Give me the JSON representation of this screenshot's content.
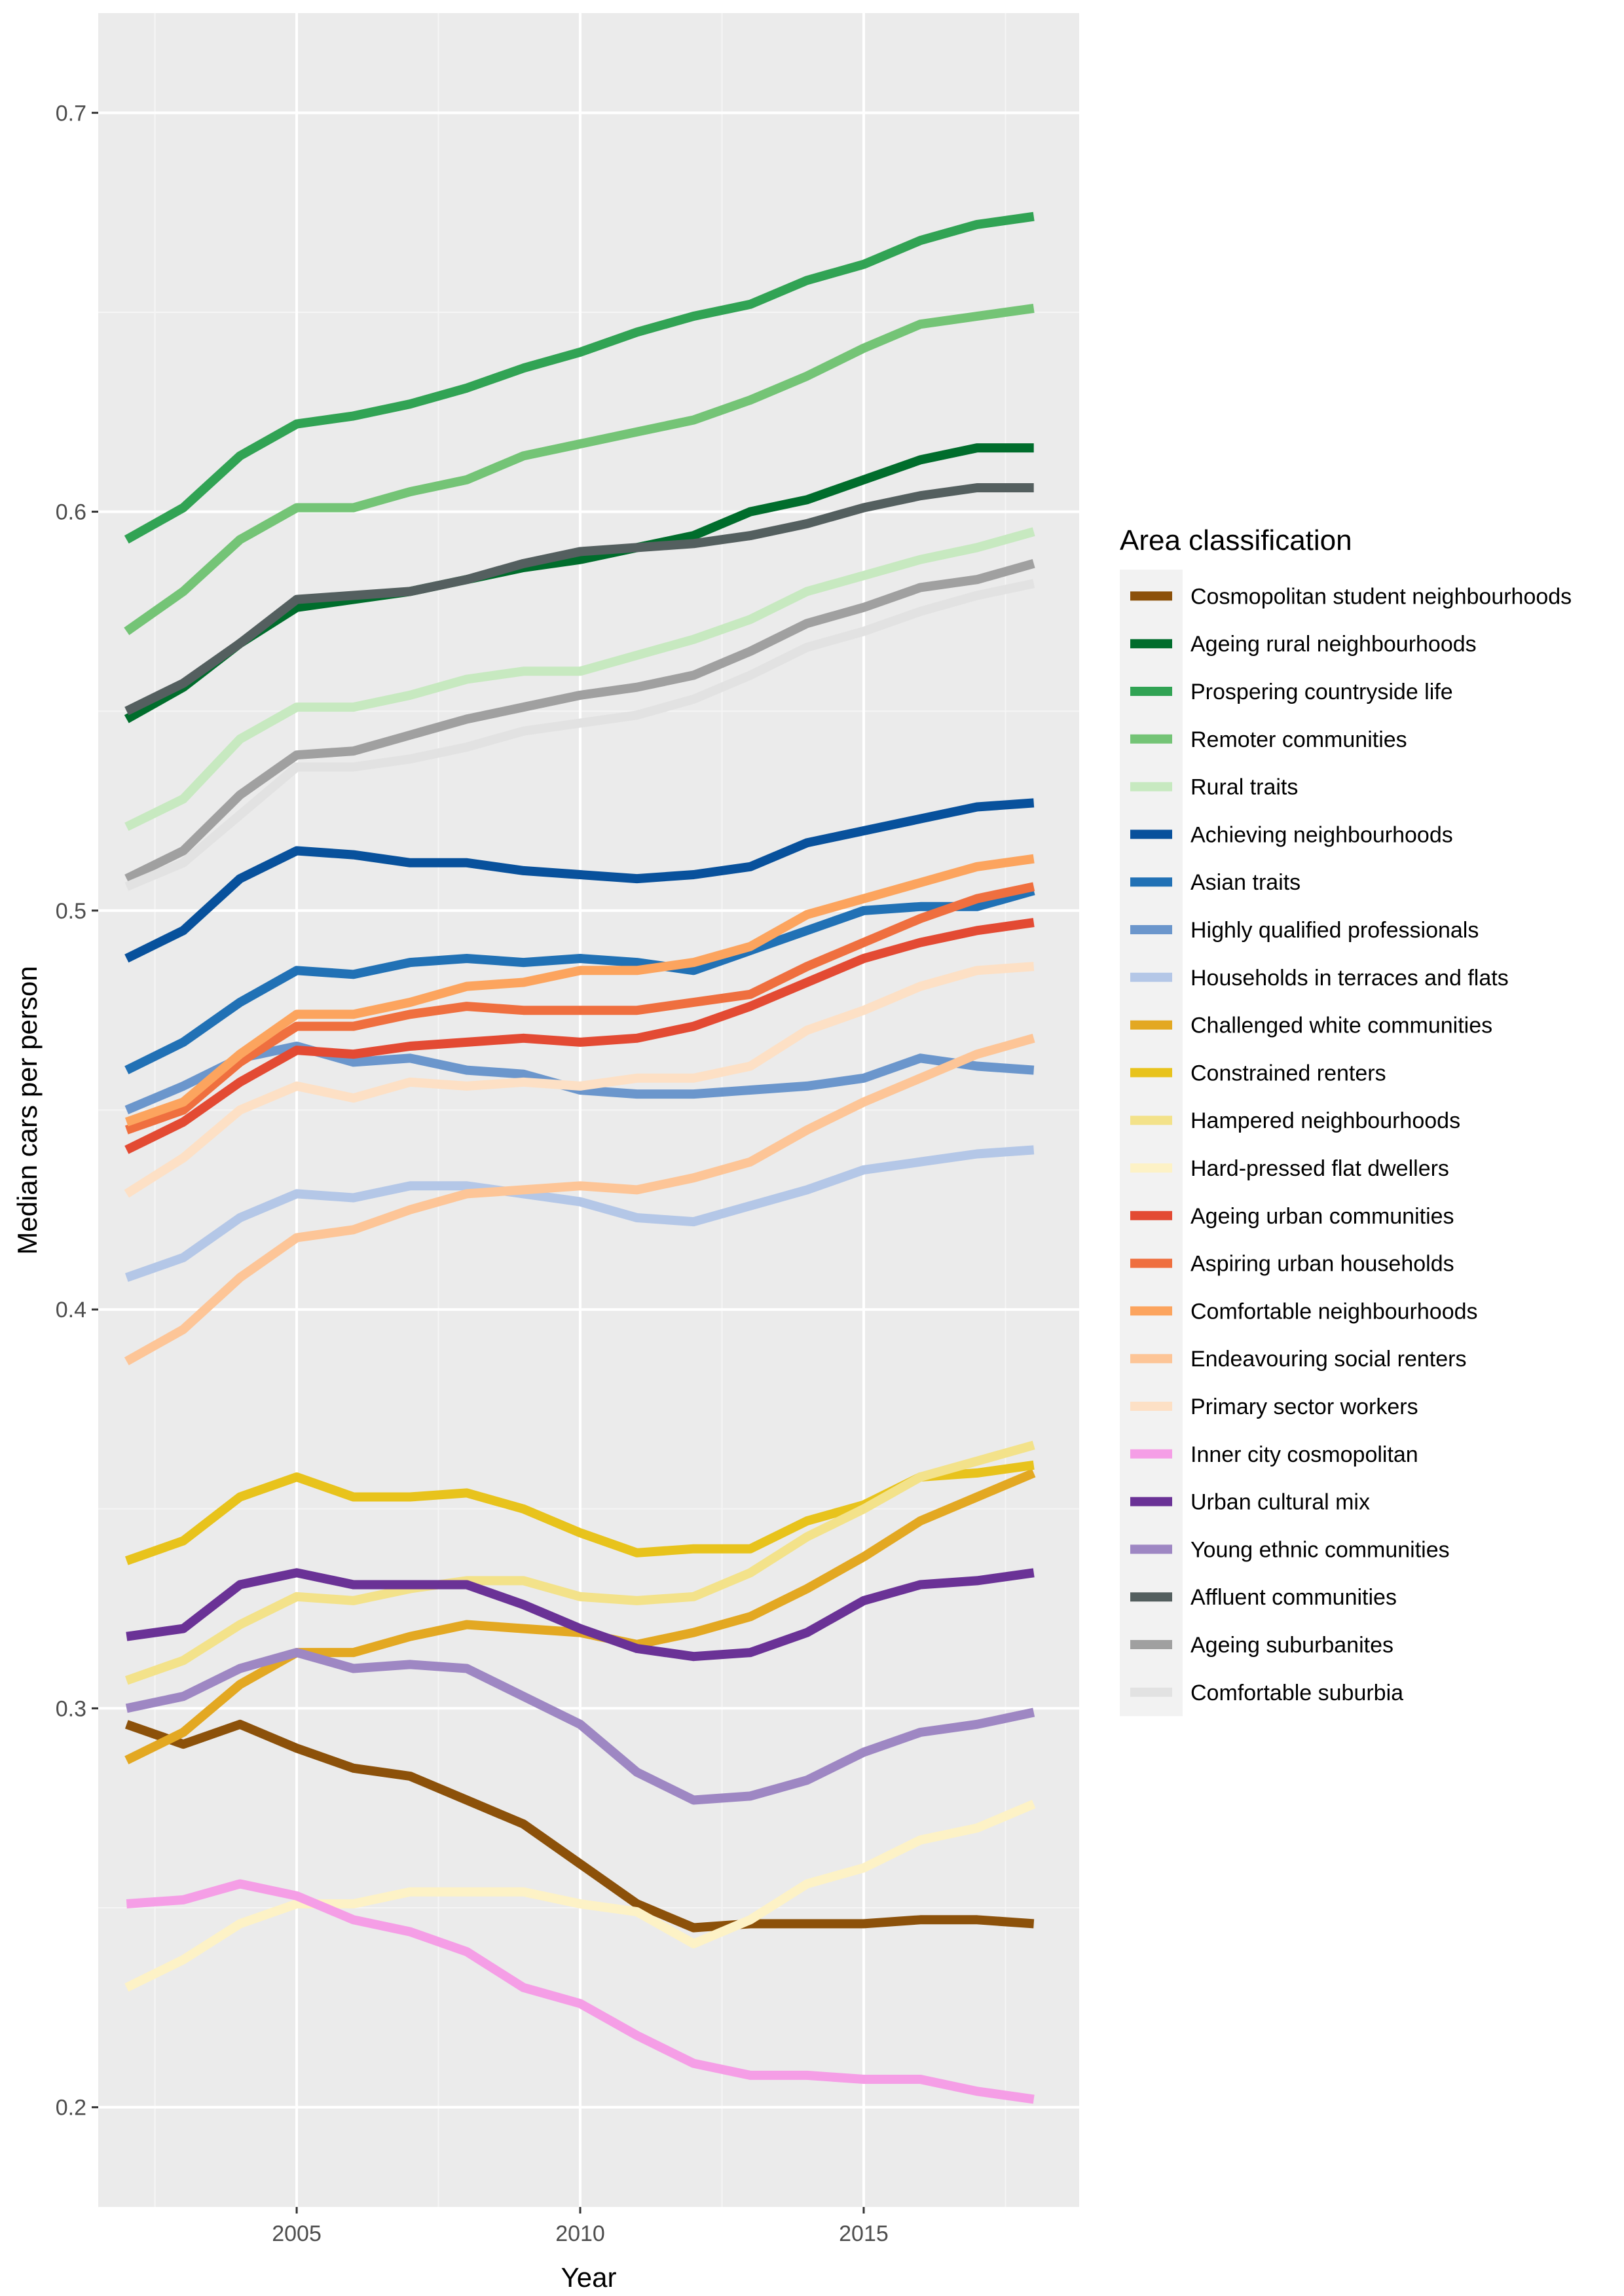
{
  "chart_data": {
    "type": "line",
    "title": "",
    "xlabel": "Year",
    "ylabel": "Median cars per person",
    "xlim": [
      2001.5,
      2018.8
    ],
    "ylim": [
      0.175,
      0.725
    ],
    "x_ticks": [
      2005,
      2010,
      2015
    ],
    "x_tick_labels": [
      "2005",
      "2010",
      "2015"
    ],
    "y_ticks": [
      0.2,
      0.3,
      0.4,
      0.5,
      0.6,
      0.7
    ],
    "y_tick_labels": [
      "0.2",
      "0.3",
      "0.4",
      "0.5",
      "0.6",
      "0.7"
    ],
    "grid": true,
    "legend": {
      "title": "Area classification",
      "position": "right"
    },
    "x": [
      2002,
      2003,
      2004,
      2005,
      2006,
      2007,
      2008,
      2009,
      2010,
      2011,
      2012,
      2013,
      2014,
      2015,
      2016,
      2017,
      2018
    ],
    "series": [
      {
        "name": "Cosmopolitan student neighbourhoods",
        "color": "#8c510a",
        "values": [
          0.296,
          0.291,
          0.296,
          0.29,
          0.285,
          0.283,
          0.277,
          0.271,
          0.261,
          0.251,
          0.245,
          0.246,
          0.246,
          0.246,
          0.247,
          0.247,
          0.246
        ]
      },
      {
        "name": "Ageing rural neighbourhoods",
        "color": "#006d2c",
        "values": [
          0.548,
          0.556,
          0.567,
          0.576,
          0.578,
          0.58,
          0.583,
          0.586,
          0.588,
          0.591,
          0.594,
          0.6,
          0.603,
          0.608,
          0.613,
          0.616,
          0.616
        ]
      },
      {
        "name": "Prospering countryside life",
        "color": "#31a354",
        "values": [
          0.593,
          0.601,
          0.614,
          0.622,
          0.624,
          0.627,
          0.631,
          0.636,
          0.64,
          0.645,
          0.649,
          0.652,
          0.658,
          0.662,
          0.668,
          0.672,
          0.674
        ]
      },
      {
        "name": "Remoter communities",
        "color": "#74c476",
        "values": [
          0.57,
          0.58,
          0.593,
          0.601,
          0.601,
          0.605,
          0.608,
          0.614,
          0.617,
          0.62,
          0.623,
          0.628,
          0.634,
          0.641,
          0.647,
          0.649,
          0.651
        ]
      },
      {
        "name": "Rural traits",
        "color": "#c7e9c0",
        "values": [
          0.521,
          0.528,
          0.543,
          0.551,
          0.551,
          0.554,
          0.558,
          0.56,
          0.56,
          0.564,
          0.568,
          0.573,
          0.58,
          0.584,
          0.588,
          0.591,
          0.595
        ]
      },
      {
        "name": "Achieving neighbourhoods",
        "color": "#08519c",
        "values": [
          0.488,
          0.495,
          0.508,
          0.515,
          0.514,
          0.512,
          0.512,
          0.51,
          0.509,
          0.508,
          0.509,
          0.511,
          0.517,
          0.52,
          0.523,
          0.526,
          0.527
        ]
      },
      {
        "name": "Asian traits",
        "color": "#2171b5",
        "values": [
          0.46,
          0.467,
          0.477,
          0.485,
          0.484,
          0.487,
          0.488,
          0.487,
          0.488,
          0.487,
          0.485,
          0.49,
          0.495,
          0.5,
          0.501,
          0.501,
          0.505
        ]
      },
      {
        "name": "Highly qualified professionals",
        "color": "#6b96cc",
        "values": [
          0.45,
          0.456,
          0.463,
          0.466,
          0.462,
          0.463,
          0.46,
          0.459,
          0.455,
          0.454,
          0.454,
          0.455,
          0.456,
          0.458,
          0.463,
          0.461,
          0.46
        ]
      },
      {
        "name": "Households in terraces and flats",
        "color": "#b4c7e7",
        "values": [
          0.408,
          0.413,
          0.423,
          0.429,
          0.428,
          0.431,
          0.431,
          0.429,
          0.427,
          0.423,
          0.422,
          0.426,
          0.43,
          0.435,
          0.437,
          0.439,
          0.44
        ]
      },
      {
        "name": "Challenged white communities",
        "color": "#e3a822",
        "values": [
          0.287,
          0.294,
          0.306,
          0.314,
          0.314,
          0.318,
          0.321,
          0.32,
          0.319,
          0.316,
          0.319,
          0.323,
          0.33,
          0.338,
          0.347,
          0.353,
          0.359
        ]
      },
      {
        "name": "Constrained renters",
        "color": "#e8c31c",
        "values": [
          0.337,
          0.342,
          0.353,
          0.358,
          0.353,
          0.353,
          0.354,
          0.35,
          0.344,
          0.339,
          0.34,
          0.34,
          0.347,
          0.351,
          0.358,
          0.359,
          0.361
        ]
      },
      {
        "name": "Hampered neighbourhoods",
        "color": "#f3e28a",
        "values": [
          0.307,
          0.312,
          0.321,
          0.328,
          0.327,
          0.33,
          0.332,
          0.332,
          0.328,
          0.327,
          0.328,
          0.334,
          0.343,
          0.35,
          0.358,
          0.362,
          0.366
        ]
      },
      {
        "name": "Hard-pressed flat dwellers",
        "color": "#fdf2c6",
        "values": [
          0.23,
          0.237,
          0.246,
          0.251,
          0.251,
          0.254,
          0.254,
          0.254,
          0.251,
          0.249,
          0.241,
          0.247,
          0.256,
          0.26,
          0.267,
          0.27,
          0.276
        ]
      },
      {
        "name": "Ageing urban communities",
        "color": "#e34a33",
        "values": [
          0.44,
          0.447,
          0.457,
          0.465,
          0.464,
          0.466,
          0.467,
          0.468,
          0.467,
          0.468,
          0.471,
          0.476,
          0.482,
          0.488,
          0.492,
          0.495,
          0.497
        ]
      },
      {
        "name": "Aspiring urban households",
        "color": "#ef6f3f",
        "values": [
          0.445,
          0.45,
          0.462,
          0.471,
          0.471,
          0.474,
          0.476,
          0.475,
          0.475,
          0.475,
          0.477,
          0.479,
          0.486,
          0.492,
          0.498,
          0.503,
          0.506
        ]
      },
      {
        "name": "Comfortable neighbourhoods",
        "color": "#fca45e",
        "values": [
          0.447,
          0.452,
          0.464,
          0.474,
          0.474,
          0.477,
          0.481,
          0.482,
          0.485,
          0.485,
          0.487,
          0.491,
          0.499,
          0.503,
          0.507,
          0.511,
          0.513
        ]
      },
      {
        "name": "Endeavouring social renters",
        "color": "#fdc597",
        "values": [
          0.387,
          0.395,
          0.408,
          0.418,
          0.42,
          0.425,
          0.429,
          0.43,
          0.431,
          0.43,
          0.433,
          0.437,
          0.445,
          0.452,
          0.458,
          0.464,
          0.468
        ]
      },
      {
        "name": "Primary sector workers",
        "color": "#fde0c5",
        "values": [
          0.429,
          0.438,
          0.45,
          0.456,
          0.453,
          0.457,
          0.456,
          0.457,
          0.456,
          0.458,
          0.458,
          0.461,
          0.47,
          0.475,
          0.481,
          0.485,
          0.486
        ]
      },
      {
        "name": "Inner city cosmopolitan",
        "color": "#f59ee6",
        "values": [
          0.251,
          0.252,
          0.256,
          0.253,
          0.247,
          0.244,
          0.239,
          0.23,
          0.226,
          0.218,
          0.211,
          0.208,
          0.208,
          0.207,
          0.207,
          0.204,
          0.202
        ]
      },
      {
        "name": "Urban cultural mix",
        "color": "#6a3296",
        "values": [
          0.318,
          0.32,
          0.331,
          0.334,
          0.331,
          0.331,
          0.331,
          0.326,
          0.32,
          0.315,
          0.313,
          0.314,
          0.319,
          0.327,
          0.331,
          0.332,
          0.334
        ]
      },
      {
        "name": "Young ethnic communities",
        "color": "#9e87c3",
        "values": [
          0.3,
          0.303,
          0.31,
          0.314,
          0.31,
          0.311,
          0.31,
          0.303,
          0.296,
          0.284,
          0.277,
          0.278,
          0.282,
          0.289,
          0.294,
          0.296,
          0.299
        ]
      },
      {
        "name": "Affluent communities",
        "color": "#545f5f",
        "values": [
          0.55,
          0.557,
          0.567,
          0.578,
          0.579,
          0.58,
          0.583,
          0.587,
          0.59,
          0.591,
          0.592,
          0.594,
          0.597,
          0.601,
          0.604,
          0.606,
          0.606
        ]
      },
      {
        "name": "Ageing suburbanites",
        "color": "#a0a0a0",
        "values": [
          0.508,
          0.515,
          0.529,
          0.539,
          0.54,
          0.544,
          0.548,
          0.551,
          0.554,
          0.556,
          0.559,
          0.565,
          0.572,
          0.576,
          0.581,
          0.583,
          0.587
        ]
      },
      {
        "name": "Comfortable suburbia",
        "color": "#e2e2e2",
        "values": [
          0.506,
          0.512,
          0.524,
          0.536,
          0.536,
          0.538,
          0.541,
          0.545,
          0.547,
          0.549,
          0.553,
          0.559,
          0.566,
          0.57,
          0.575,
          0.579,
          0.582
        ]
      }
    ]
  }
}
